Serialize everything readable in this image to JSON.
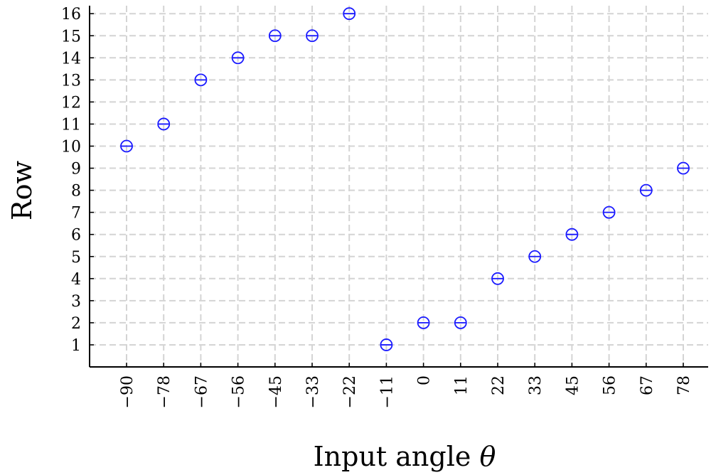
{
  "chart_data": {
    "type": "scatter",
    "title": "",
    "xlabel_prefix": "Input angle ",
    "xlabel_symbol": "θ",
    "ylabel": "Row",
    "x_ticks": [
      "−90",
      "−78",
      "−67",
      "−56",
      "−45",
      "−33",
      "−22",
      "−11",
      "0",
      "11",
      "22",
      "33",
      "45",
      "56",
      "67",
      "78"
    ],
    "y_ticks": [
      1,
      2,
      3,
      4,
      5,
      6,
      7,
      8,
      9,
      10,
      11,
      12,
      13,
      14,
      15,
      16
    ],
    "ylim": [
      0,
      16
    ],
    "grid": true,
    "marker": "circle-with-horizontal-bar",
    "series": [
      {
        "color": "#1a1aff",
        "x": [
          -90,
          -78,
          -67,
          -56,
          -45,
          -33,
          -22,
          -11,
          0,
          11,
          22,
          33,
          45,
          56,
          67,
          78
        ],
        "y": [
          10,
          11,
          13,
          14,
          15,
          15,
          16,
          1,
          2,
          2,
          4,
          5,
          6,
          7,
          8,
          9
        ]
      }
    ]
  }
}
